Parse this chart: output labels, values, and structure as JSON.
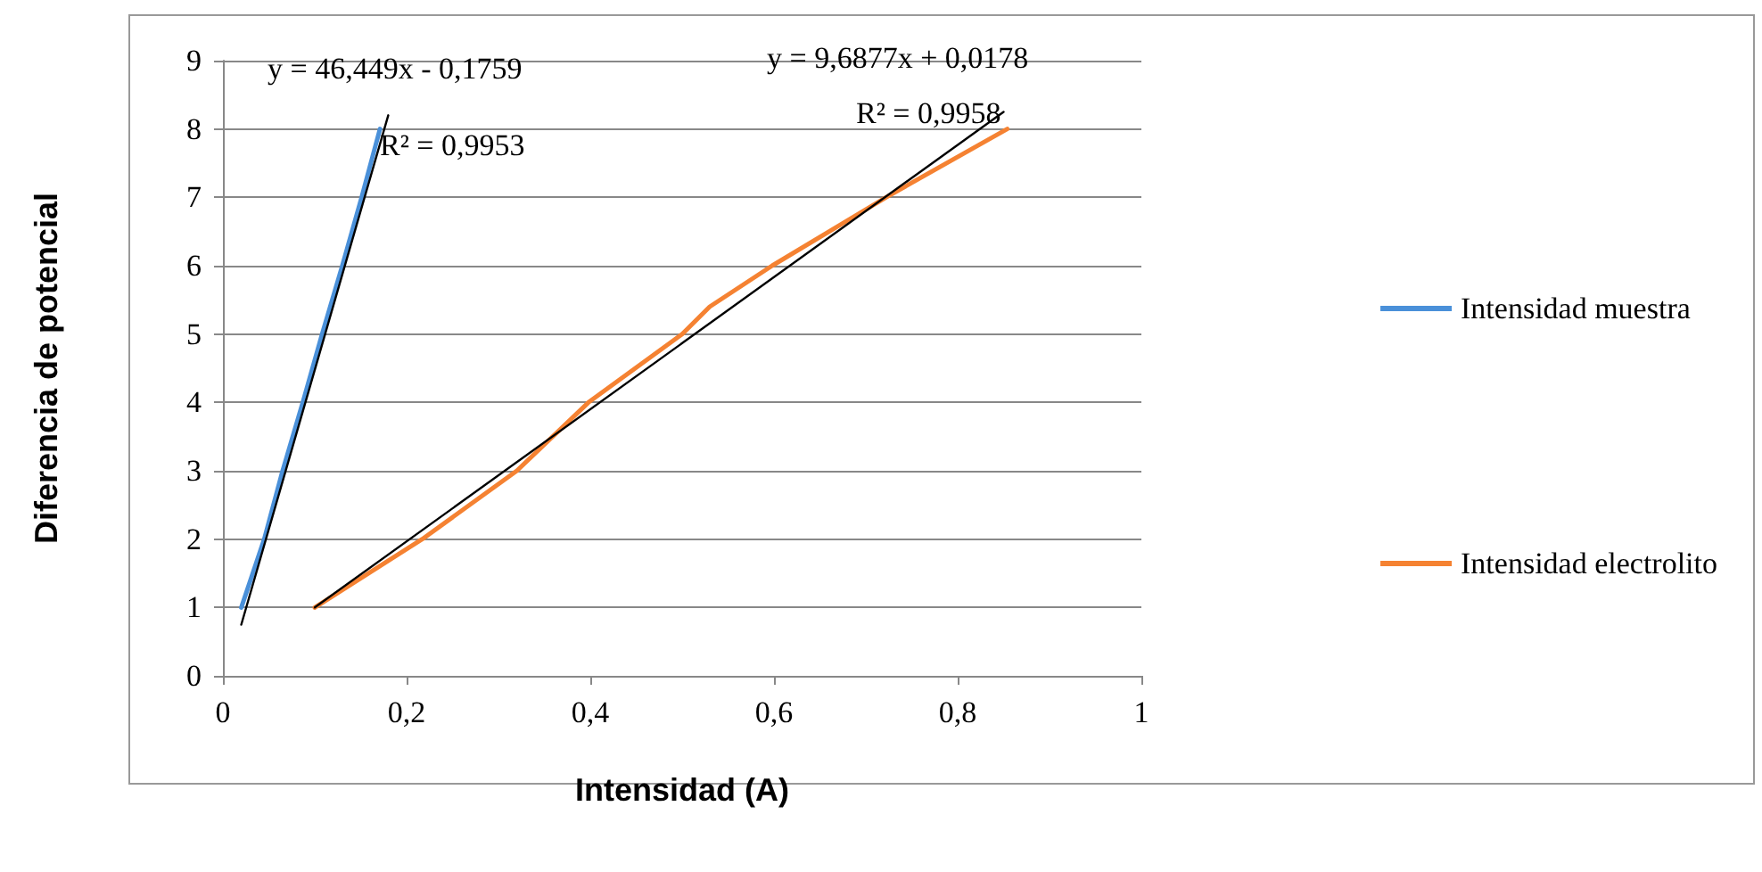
{
  "chart_data": {
    "type": "line",
    "xlabel": "Intensidad (A)",
    "ylabel": "Diferencia de potencial",
    "xlim": [
      0,
      1
    ],
    "xticks": [
      0,
      {
        "value": 0.2,
        "label": "0,2"
      },
      {
        "value": 0.4,
        "label": "0,4"
      },
      {
        "value": 0.6,
        "label": "0,6"
      },
      {
        "value": 0.8,
        "label": "0,8"
      },
      1
    ],
    "ylim": [
      0,
      9
    ],
    "yticks": [
      0,
      1,
      2,
      3,
      4,
      5,
      6,
      7,
      8,
      9
    ],
    "grid": "y",
    "legend": "right",
    "marker": "none",
    "line_style": "solid",
    "series": [
      {
        "name": "Intensidad muestra",
        "color": "#4a90d9",
        "x": [
          0.02,
          0.045,
          0.065,
          0.087,
          0.108,
          0.13,
          0.151,
          0.171
        ],
        "values": [
          1,
          2,
          3,
          4,
          5,
          6,
          7,
          8
        ]
      },
      {
        "name": "Intensidad electrolito",
        "color": "#f58232",
        "x": [
          0.1,
          0.217,
          0.32,
          0.398,
          0.5,
          0.53,
          0.598,
          0.722,
          0.854
        ],
        "values": [
          1,
          2,
          3,
          4,
          5,
          5.4,
          6,
          7,
          8
        ]
      },
      {
        "color": "#000000",
        "x": [
          0.02,
          0.18
        ],
        "values": [
          0.75,
          8.2
        ]
      },
      {
        "color": "#000000",
        "x": [
          0.1,
          0.85
        ],
        "values": [
          1,
          8.25
        ]
      }
    ],
    "annotations": [
      "y = 46,449x - 0,1759",
      "R² = 0,9953",
      "y = 9,6877x + 0,0178",
      "R² = 0,9958"
    ]
  }
}
